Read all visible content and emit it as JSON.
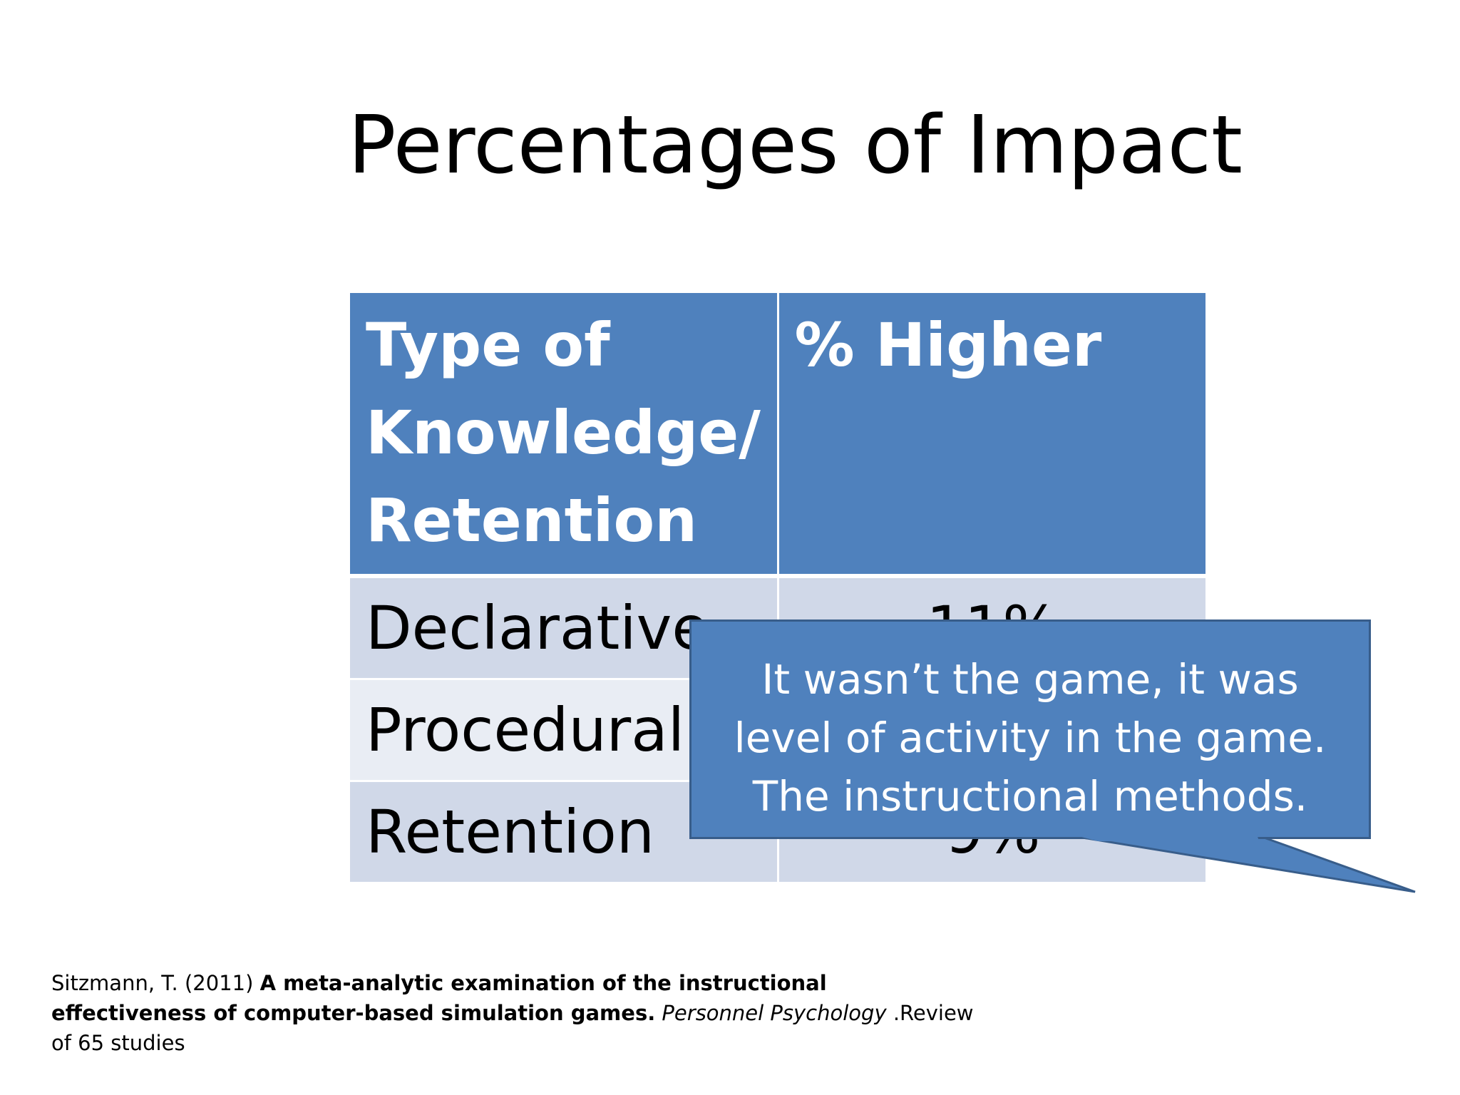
{
  "slide": {
    "title": "Percentages of Impact"
  },
  "table": {
    "headers": [
      "Type of Knowledge/ Retention",
      "% Higher"
    ],
    "rows": [
      {
        "type": "Declarative",
        "value": "11%"
      },
      {
        "type": "Procedural",
        "value": ""
      },
      {
        "type": "Retention",
        "value": "9%"
      }
    ]
  },
  "callout": {
    "text": "It wasn’t the game, it was level of activity in the game. The instructional methods."
  },
  "citation": {
    "author": "Sitzmann, T. (2011) ",
    "article_title": "A meta-analytic examination of the instructional effectiveness of computer-based simulation games.",
    "journal": " Personnel Psychology",
    "note": " .Review of 65 studies"
  },
  "colors": {
    "header_fill": "#4f81bd",
    "row_odd": "#d0d8e8",
    "row_even": "#e9edf4",
    "callout_fill": "#4f81bd",
    "callout_border": "#385d8a"
  }
}
